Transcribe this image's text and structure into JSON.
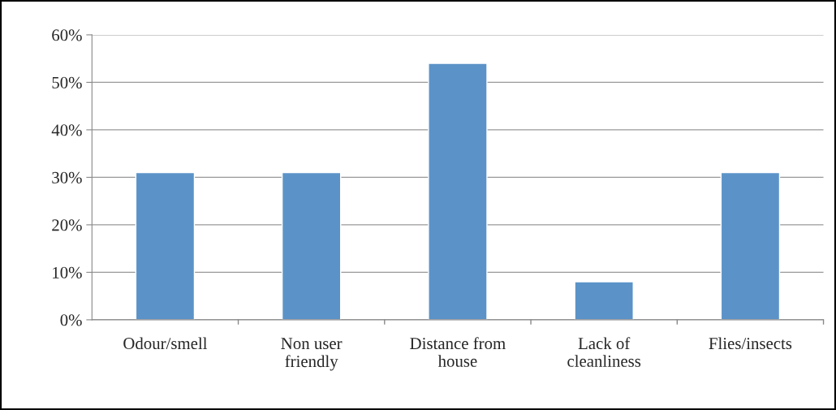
{
  "chart_data": {
    "type": "bar",
    "categories": [
      "Odour/smell",
      "Non user\nfriendly",
      "Distance from\nhouse",
      "Lack of\ncleanliness",
      "Flies/insects"
    ],
    "values": [
      31,
      31,
      54,
      8,
      31
    ],
    "color": "#5b93c8",
    "ylim": [
      0,
      60
    ],
    "yticks": [
      {
        "value": 0,
        "label": "0%"
      },
      {
        "value": 10,
        "label": "10%"
      },
      {
        "value": 20,
        "label": "20%"
      },
      {
        "value": 30,
        "label": "30%"
      },
      {
        "value": 40,
        "label": "40%"
      },
      {
        "value": 50,
        "label": "50%"
      },
      {
        "value": 60,
        "label": "60%"
      }
    ],
    "grid": "y",
    "legend": false
  }
}
